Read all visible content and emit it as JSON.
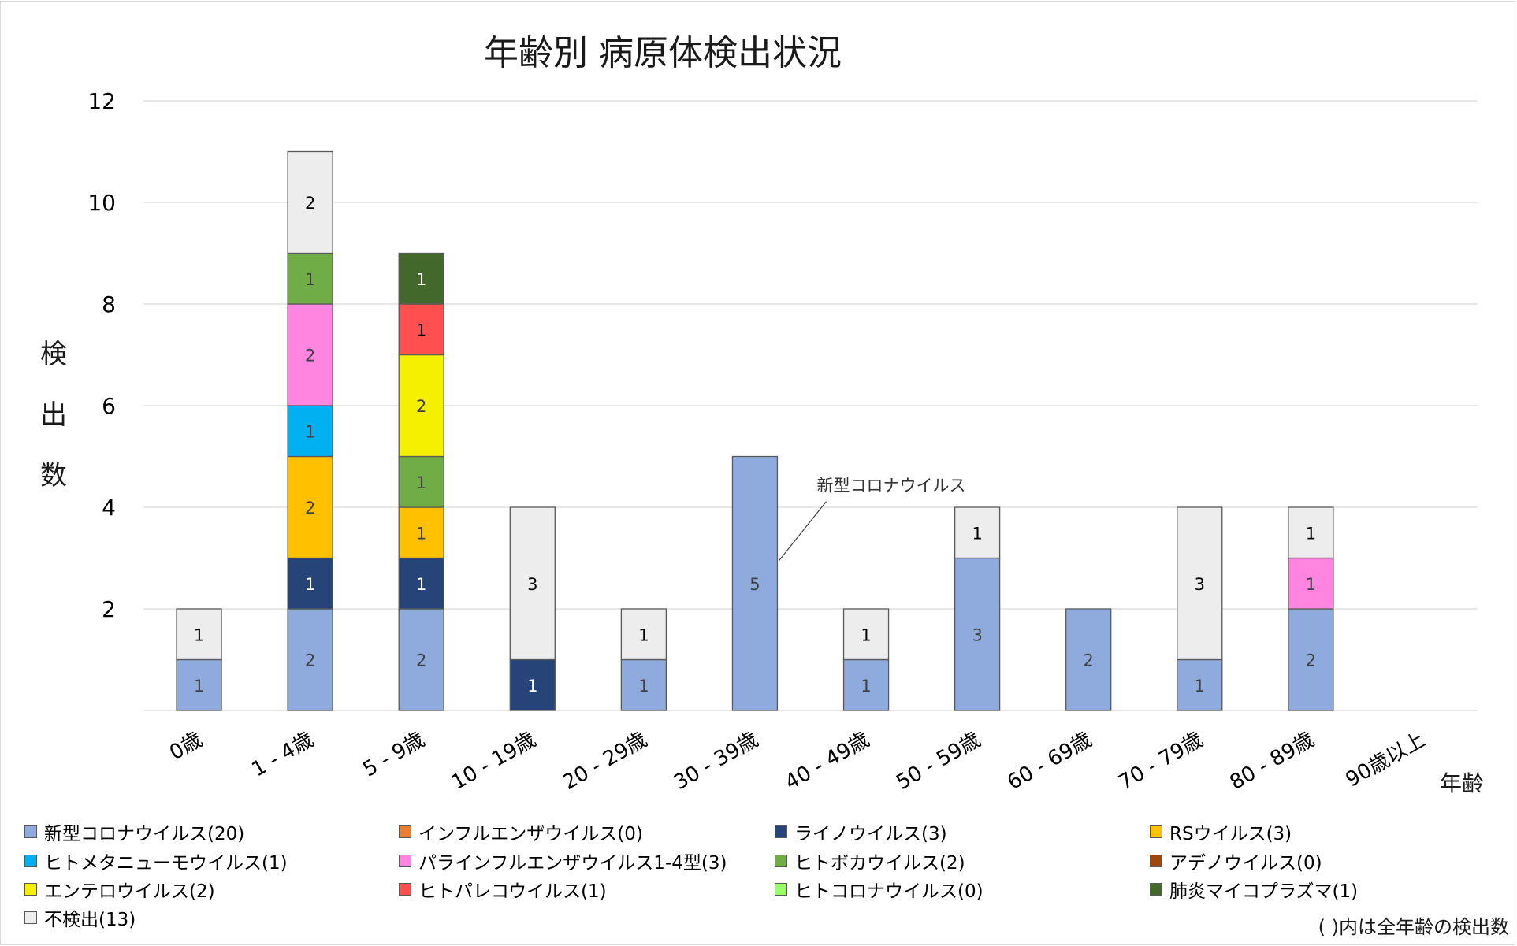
{
  "chart_data": {
    "type": "bar",
    "stacked": true,
    "title": "年齢別 病原体検出状況",
    "xlabel": "年齢",
    "ylabel": "検出数",
    "ylim": [
      0,
      12
    ],
    "yticks": [
      2,
      4,
      6,
      8,
      10,
      12
    ],
    "grid": true,
    "legend_position": "bottom",
    "categories": [
      "0歳",
      "1 - 4歳",
      "5 - 9歳",
      "10 - 19歳",
      "20 - 29歳",
      "30 - 39歳",
      "40 - 49歳",
      "50 - 59歳",
      "60 - 69歳",
      "70 - 79歳",
      "80 - 89歳",
      "90歳以上"
    ],
    "series": [
      {
        "name": "新型コロナウイルス(20)",
        "color": "#8faadc",
        "label_color": "#404040",
        "values": [
          1,
          2,
          2,
          0,
          1,
          5,
          1,
          3,
          2,
          1,
          2,
          0
        ]
      },
      {
        "name": "インフルエンザウイルス(0)",
        "color": "#ed7d31",
        "label_color": "#404040",
        "values": [
          0,
          0,
          0,
          0,
          0,
          0,
          0,
          0,
          0,
          0,
          0,
          0
        ]
      },
      {
        "name": "ライノウイルス(3)",
        "color": "#264478",
        "label_color": "#ffffff",
        "values": [
          0,
          1,
          1,
          1,
          0,
          0,
          0,
          0,
          0,
          0,
          0,
          0
        ]
      },
      {
        "name": "RSウイルス(3)",
        "color": "#ffc000",
        "label_color": "#404040",
        "values": [
          0,
          2,
          1,
          0,
          0,
          0,
          0,
          0,
          0,
          0,
          0,
          0
        ]
      },
      {
        "name": "ヒトメタニューモウイルス(1)",
        "color": "#00b0f0",
        "label_color": "#404040",
        "values": [
          0,
          1,
          0,
          0,
          0,
          0,
          0,
          0,
          0,
          0,
          0,
          0
        ]
      },
      {
        "name": "パラインフルエンザウイルス1-4型(3)",
        "color": "#ff85e0",
        "label_color": "#404040",
        "values": [
          0,
          2,
          0,
          0,
          0,
          0,
          0,
          0,
          0,
          0,
          1,
          0
        ]
      },
      {
        "name": "ヒトボカウイルス(2)",
        "color": "#70ad47",
        "label_color": "#404040",
        "values": [
          0,
          1,
          1,
          0,
          0,
          0,
          0,
          0,
          0,
          0,
          0,
          0
        ]
      },
      {
        "name": "アデノウイルス(0)",
        "color": "#9e480e",
        "label_color": "#ffffff",
        "values": [
          0,
          0,
          0,
          0,
          0,
          0,
          0,
          0,
          0,
          0,
          0,
          0
        ]
      },
      {
        "name": "エンテロウイルス(2)",
        "color": "#f5f000",
        "label_color": "#404040",
        "values": [
          0,
          0,
          2,
          0,
          0,
          0,
          0,
          0,
          0,
          0,
          0,
          0
        ]
      },
      {
        "name": "ヒトパレコウイルス(1)",
        "color": "#ff4f4f",
        "label_color": "#000000",
        "values": [
          0,
          0,
          1,
          0,
          0,
          0,
          0,
          0,
          0,
          0,
          0,
          0
        ]
      },
      {
        "name": "ヒトコロナウイルス(0)",
        "color": "#99ff66",
        "label_color": "#404040",
        "values": [
          0,
          0,
          0,
          0,
          0,
          0,
          0,
          0,
          0,
          0,
          0,
          0
        ]
      },
      {
        "name": "肺炎マイコプラズマ(1)",
        "color": "#43682b",
        "label_color": "#ffffff",
        "values": [
          0,
          0,
          1,
          0,
          0,
          0,
          0,
          0,
          0,
          0,
          0,
          0
        ]
      },
      {
        "name": "不検出(13)",
        "color": "#ededed",
        "label_color": "#000000",
        "values": [
          1,
          2,
          0,
          3,
          1,
          0,
          1,
          1,
          0,
          3,
          1,
          0
        ]
      }
    ],
    "annotations": [
      {
        "text": "新型コロナウイルス",
        "category": "30 - 39歳",
        "series": "新型コロナウイルス(20)"
      }
    ],
    "note": "( )内は全年齢の検出数"
  }
}
